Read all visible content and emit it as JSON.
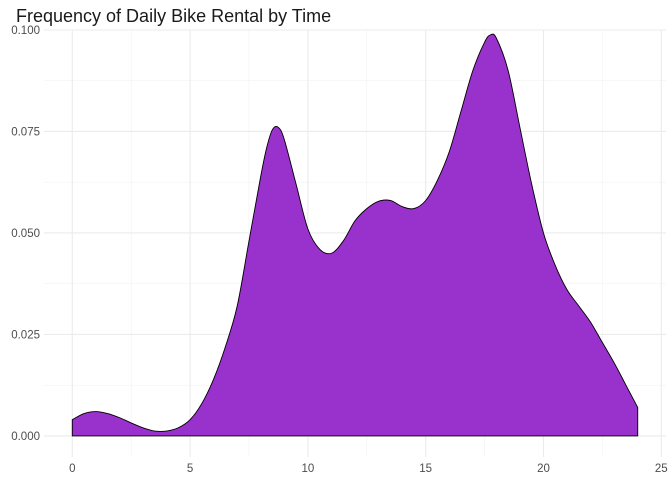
{
  "chart_data": {
    "type": "area",
    "title": "Frequency of Daily Bike Rental by Time",
    "xlabel": "",
    "ylabel": "",
    "xlim": [
      -1.2,
      25.2
    ],
    "ylim": [
      -0.0052,
      0.1
    ],
    "grid": true,
    "legend": "none",
    "fill_color": "#9932CC",
    "stroke_color": "#000000",
    "x_ticks": [
      0,
      5,
      10,
      15,
      20,
      25
    ],
    "x_tick_labels": [
      "0",
      "5",
      "10",
      "15",
      "20",
      "25"
    ],
    "y_ticks": [
      0.0,
      0.025,
      0.05,
      0.075,
      0.1
    ],
    "y_tick_labels": [
      "0.000",
      "0.025",
      "0.050",
      "0.075",
      "0.100"
    ],
    "x": [
      0,
      0.5,
      1,
      1.5,
      2,
      2.5,
      3,
      3.5,
      4,
      4.5,
      5,
      5.5,
      6,
      6.5,
      7,
      7.5,
      8,
      8.25,
      8.5,
      8.75,
      9,
      9.5,
      10,
      10.5,
      11,
      11.5,
      12,
      12.5,
      13,
      13.5,
      14,
      14.5,
      15,
      15.5,
      16,
      16.5,
      17,
      17.5,
      17.75,
      18,
      18.5,
      19,
      19.5,
      20,
      20.5,
      21,
      21.5,
      22,
      22.5,
      23,
      23.5,
      24
    ],
    "values": [
      0.004,
      0.0055,
      0.006,
      0.0055,
      0.0045,
      0.0032,
      0.002,
      0.0012,
      0.0012,
      0.002,
      0.004,
      0.008,
      0.014,
      0.022,
      0.032,
      0.048,
      0.064,
      0.071,
      0.0755,
      0.076,
      0.073,
      0.062,
      0.051,
      0.046,
      0.045,
      0.048,
      0.053,
      0.056,
      0.0578,
      0.058,
      0.0565,
      0.056,
      0.058,
      0.063,
      0.07,
      0.08,
      0.09,
      0.097,
      0.0988,
      0.098,
      0.09,
      0.076,
      0.062,
      0.05,
      0.042,
      0.036,
      0.032,
      0.028,
      0.023,
      0.018,
      0.0125,
      0.007
    ]
  }
}
